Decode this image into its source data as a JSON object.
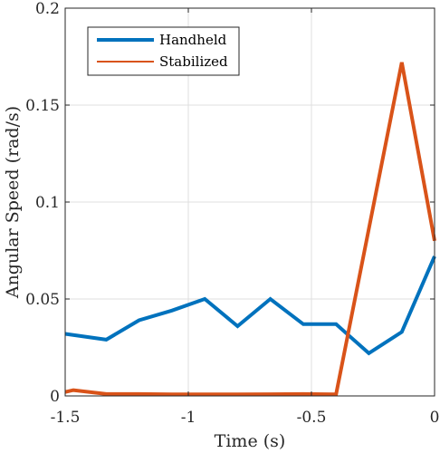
{
  "chart_data": {
    "type": "line",
    "xlabel": "Time (s)",
    "ylabel": "Angular Speed (rad/s)",
    "xlim": [
      -1.5,
      0
    ],
    "ylim": [
      0,
      0.2
    ],
    "xticks": [
      -1.5,
      -1,
      -0.5,
      0
    ],
    "xtick_labels": [
      "-1.5",
      "-1",
      "-0.5",
      "0"
    ],
    "yticks": [
      0,
      0.05,
      0.1,
      0.15,
      0.2
    ],
    "ytick_labels": [
      "0",
      "0.05",
      "0.1",
      "0.15",
      "0.2"
    ],
    "grid": true,
    "legend_position": "top-left",
    "series": [
      {
        "name": "Handheld",
        "color": "#0072BD",
        "x": [
          -1.5,
          -1.333,
          -1.2,
          -1.067,
          -0.933,
          -0.8,
          -0.667,
          -0.533,
          -0.4,
          -0.267,
          -0.133,
          0
        ],
        "y": [
          0.032,
          0.029,
          0.039,
          0.044,
          0.05,
          0.036,
          0.05,
          0.037,
          0.037,
          0.022,
          0.033,
          0.072
        ]
      },
      {
        "name": "Stabilized",
        "color": "#D95319",
        "x": [
          -1.5,
          -1.467,
          -1.333,
          -1.2,
          -1.067,
          -0.933,
          -0.8,
          -0.667,
          -0.533,
          -0.4,
          -0.133,
          0
        ],
        "y": [
          0.002,
          0.003,
          0.001,
          0.001,
          0.0008,
          0.0008,
          0.0008,
          0.0009,
          0.001,
          0.0008,
          0.172,
          0.08
        ]
      }
    ]
  }
}
